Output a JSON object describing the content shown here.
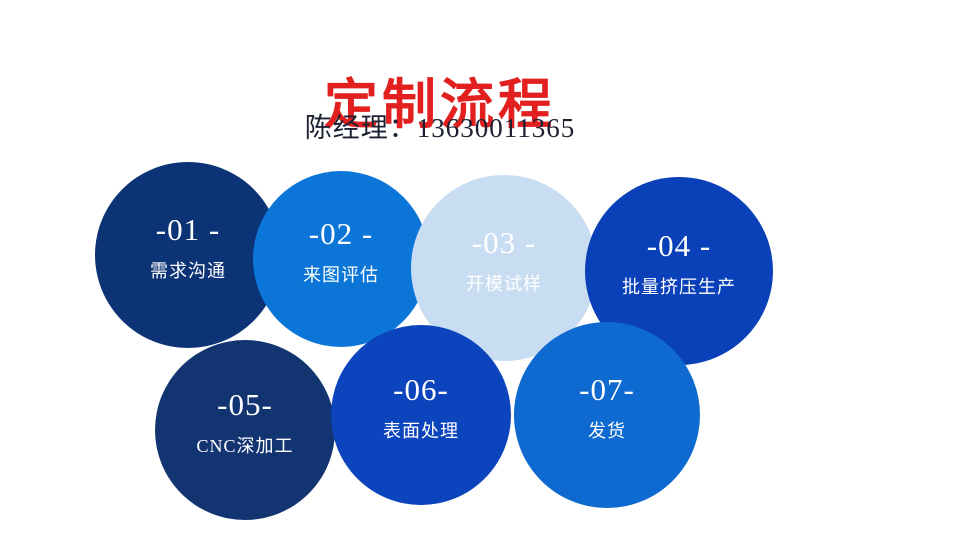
{
  "page": {
    "background_color": "#ffffff"
  },
  "header": {
    "title": "定制流程",
    "title_color": "#e32020",
    "contact": "陈经理：13630011365",
    "contact_color": "#1b2032"
  },
  "steps": [
    {
      "number": "-01 -",
      "label": "需求沟通",
      "color": "#0d3377",
      "text_color": "#ffffff"
    },
    {
      "number": "-02 -",
      "label": "来图评估",
      "color": "#0b76d8",
      "text_color": "#ffffff"
    },
    {
      "number": "-03 -",
      "label": "开模试样",
      "color": "#c8ddf2",
      "text_color": "#ffffff"
    },
    {
      "number": "-04 -",
      "label": "批量挤压生产",
      "color": "#0a40b8",
      "text_color": "#ffffff"
    },
    {
      "number": "-05-",
      "label": "CNC深加工",
      "color": "#123572",
      "text_color": "#ffffff"
    },
    {
      "number": "-06-",
      "label": "表面处理",
      "color": "#0c44bd",
      "text_color": "#ffffff"
    },
    {
      "number": "-07-",
      "label": "发货",
      "color": "#0e6ad0",
      "text_color": "#ffffff"
    }
  ]
}
